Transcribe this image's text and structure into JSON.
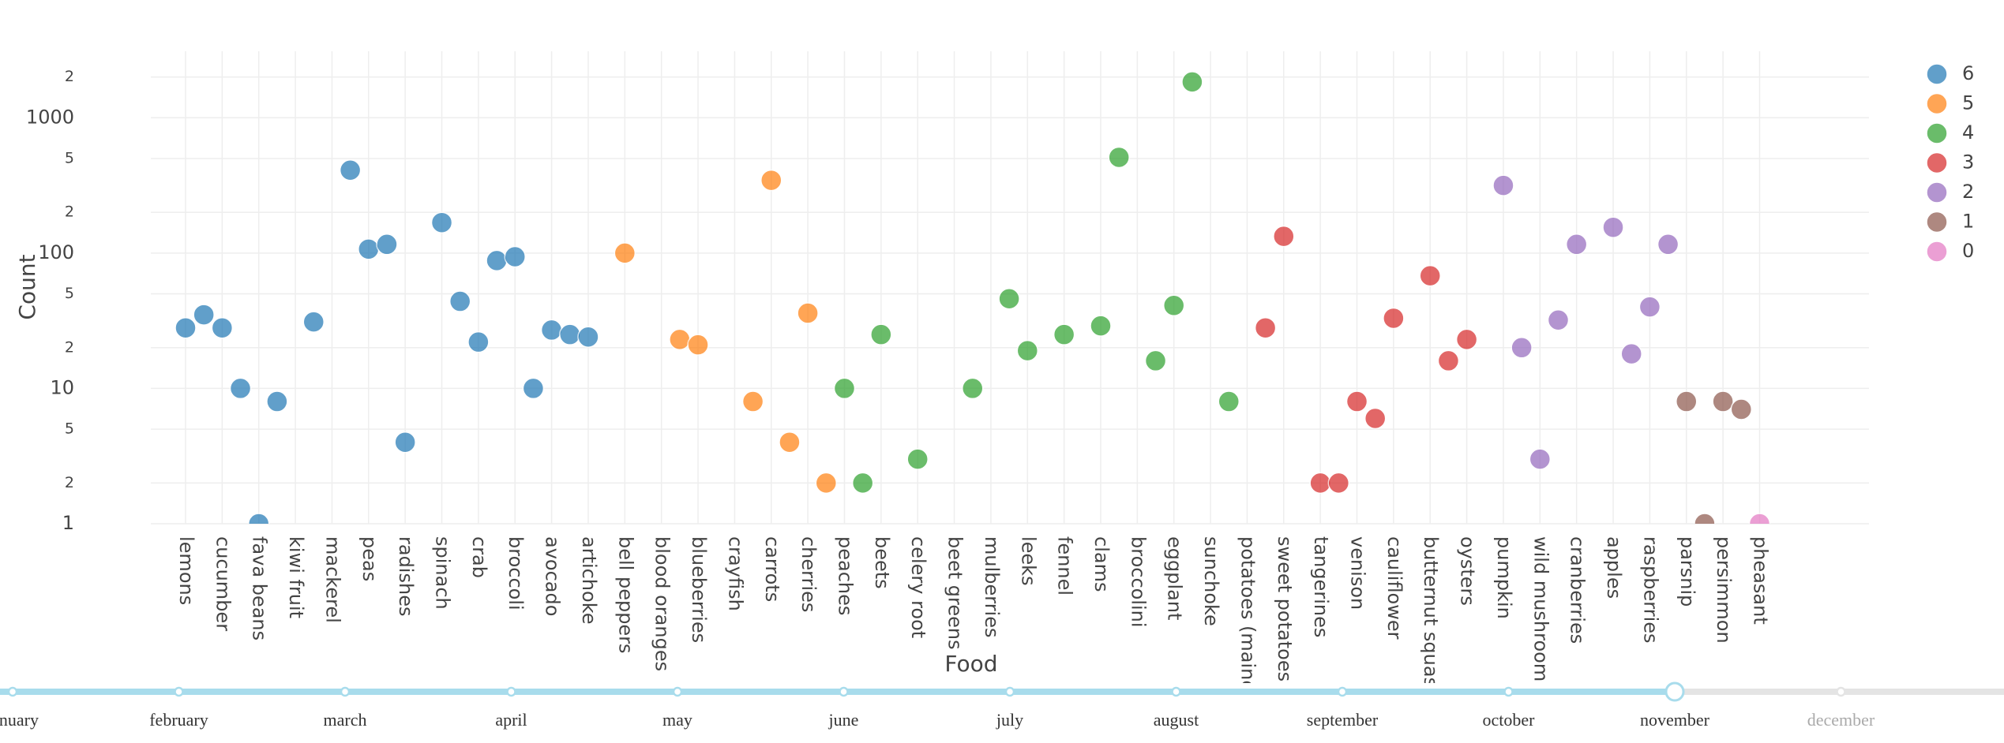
{
  "chart_data": {
    "type": "scatter",
    "x_label": "Food",
    "y_label": "Count",
    "log_y": true,
    "grid": true,
    "ylim": [
      1,
      3100
    ],
    "yticks": [
      1,
      2,
      5,
      10,
      {
        "value": 20,
        "label": "2"
      },
      {
        "value": 50,
        "label": "5"
      },
      100,
      {
        "value": 200,
        "label": "2"
      },
      {
        "value": 500,
        "label": "5"
      },
      1000,
      {
        "value": 2000,
        "label": "2"
      }
    ],
    "categories": [
      "lemons",
      null,
      "cucumber",
      null,
      "fava beans",
      null,
      "kiwi fruit",
      null,
      "mackerel",
      null,
      "peas",
      null,
      "radishes",
      null,
      "spinach",
      null,
      "crab",
      null,
      "broccoli",
      null,
      "avocado",
      null,
      "artichoke",
      null,
      "bell peppers",
      null,
      "blood oranges",
      null,
      "blueberries",
      null,
      "crayfish",
      null,
      "carrots",
      null,
      "cherries",
      null,
      "peaches",
      null,
      "beets",
      null,
      "celery root",
      null,
      "beet greens",
      null,
      "mulberries",
      null,
      "leeks",
      null,
      "fennel",
      null,
      "clams",
      null,
      "broccolini",
      null,
      "eggplant",
      null,
      "sunchoke",
      null,
      "potatoes (mainc",
      null,
      "sweet potatoes",
      null,
      "tangerines",
      null,
      "venison",
      null,
      "cauliflower",
      null,
      "butternut squas",
      null,
      "oysters",
      null,
      "pumpkin",
      null,
      "wild mushroom",
      null,
      "cranberries",
      null,
      "apples",
      null,
      "raspberries",
      null,
      "parsnip",
      null,
      "persimmon",
      null,
      "pheasant"
    ],
    "series": [
      {
        "name": "6",
        "color": "#1f77b4",
        "values": [
          28,
          35,
          28,
          10,
          1,
          8,
          null,
          31,
          null,
          410,
          107,
          116,
          4,
          null,
          168,
          44,
          22,
          88,
          94,
          10,
          27,
          25,
          24,
          null,
          null,
          null,
          null,
          null,
          null,
          null,
          null,
          null,
          null,
          null,
          null,
          null,
          null,
          null,
          null,
          null,
          null,
          null,
          null,
          null,
          null,
          null,
          null,
          null,
          null,
          null,
          null,
          null,
          null,
          null,
          null,
          null,
          null,
          null,
          null,
          null,
          null,
          null,
          null,
          null,
          null,
          null,
          null,
          null,
          null,
          null,
          null,
          null,
          null,
          null,
          null,
          null,
          null,
          null,
          null,
          null,
          null,
          null,
          null,
          null,
          null,
          null,
          null
        ]
      },
      {
        "name": "5",
        "color": "#ff7f0e",
        "values": [
          null,
          null,
          null,
          null,
          null,
          null,
          null,
          null,
          null,
          null,
          null,
          null,
          null,
          null,
          null,
          null,
          null,
          null,
          null,
          null,
          null,
          null,
          null,
          null,
          100,
          null,
          null,
          23,
          21,
          null,
          null,
          8,
          345,
          4,
          36,
          2,
          null,
          null,
          null,
          null,
          null,
          null,
          null,
          null,
          null,
          null,
          null,
          null,
          null,
          null,
          null,
          null,
          null,
          null,
          null,
          null,
          null,
          null,
          null,
          null,
          null,
          null,
          null,
          null,
          null,
          null,
          null,
          null,
          null,
          null,
          null,
          null,
          null,
          null,
          null,
          null,
          null,
          null,
          null,
          null,
          null,
          null,
          null,
          null,
          null,
          null,
          null
        ]
      },
      {
        "name": "4",
        "color": "#2ca02c",
        "values": [
          null,
          null,
          null,
          null,
          null,
          null,
          null,
          null,
          null,
          null,
          null,
          null,
          null,
          null,
          null,
          null,
          null,
          null,
          null,
          null,
          null,
          null,
          null,
          null,
          null,
          null,
          null,
          null,
          null,
          null,
          null,
          null,
          null,
          null,
          null,
          null,
          10,
          2,
          25,
          null,
          3,
          null,
          null,
          10,
          null,
          46,
          19,
          null,
          25,
          null,
          29,
          510,
          null,
          16,
          41,
          1840,
          null,
          8,
          null,
          null,
          null,
          null,
          null,
          null,
          null,
          null,
          null,
          null,
          null,
          null,
          null,
          null,
          null,
          null,
          null,
          null,
          null,
          null,
          null,
          null,
          null,
          null,
          null,
          null,
          null,
          null,
          null
        ]
      },
      {
        "name": "3",
        "color": "#d62728",
        "values": [
          null,
          null,
          null,
          null,
          null,
          null,
          null,
          null,
          null,
          null,
          null,
          null,
          null,
          null,
          null,
          null,
          null,
          null,
          null,
          null,
          null,
          null,
          null,
          null,
          null,
          null,
          null,
          null,
          null,
          null,
          null,
          null,
          null,
          null,
          null,
          null,
          null,
          null,
          null,
          null,
          null,
          null,
          null,
          null,
          null,
          null,
          null,
          null,
          null,
          null,
          null,
          null,
          null,
          null,
          null,
          null,
          null,
          null,
          null,
          28,
          133,
          null,
          2,
          2,
          8,
          6,
          33,
          null,
          68,
          16,
          23,
          null,
          null,
          null,
          null,
          null,
          null,
          null,
          null,
          null,
          null,
          null,
          null,
          null,
          null,
          null,
          null
        ]
      },
      {
        "name": "2",
        "color": "#9467bd",
        "values": [
          null,
          null,
          null,
          null,
          null,
          null,
          null,
          null,
          null,
          null,
          null,
          null,
          null,
          null,
          null,
          null,
          null,
          null,
          null,
          null,
          null,
          null,
          null,
          null,
          null,
          null,
          null,
          null,
          null,
          null,
          null,
          null,
          null,
          null,
          null,
          null,
          null,
          null,
          null,
          null,
          null,
          null,
          null,
          null,
          null,
          null,
          null,
          null,
          null,
          null,
          null,
          null,
          null,
          null,
          null,
          null,
          null,
          null,
          null,
          null,
          null,
          null,
          null,
          null,
          null,
          null,
          null,
          null,
          null,
          null,
          null,
          null,
          316,
          20,
          3,
          32,
          116,
          null,
          155,
          18,
          40,
          116,
          null,
          null,
          null,
          null,
          null
        ]
      },
      {
        "name": "1",
        "color": "#8c564b",
        "values": [
          null,
          null,
          null,
          null,
          null,
          null,
          null,
          null,
          null,
          null,
          null,
          null,
          null,
          null,
          null,
          null,
          null,
          null,
          null,
          null,
          null,
          null,
          null,
          null,
          null,
          null,
          null,
          null,
          null,
          null,
          null,
          null,
          null,
          null,
          null,
          null,
          null,
          null,
          null,
          null,
          null,
          null,
          null,
          null,
          null,
          null,
          null,
          null,
          null,
          null,
          null,
          null,
          null,
          null,
          null,
          null,
          null,
          null,
          null,
          null,
          null,
          null,
          null,
          null,
          null,
          null,
          null,
          null,
          null,
          null,
          null,
          null,
          null,
          null,
          null,
          null,
          null,
          null,
          null,
          null,
          null,
          null,
          8,
          1,
          8,
          7,
          null
        ]
      },
      {
        "name": "0",
        "color": "#e377c2",
        "values": [
          null,
          null,
          null,
          null,
          null,
          null,
          null,
          null,
          null,
          null,
          null,
          null,
          null,
          null,
          null,
          null,
          null,
          null,
          null,
          null,
          null,
          null,
          null,
          null,
          null,
          null,
          null,
          null,
          null,
          null,
          null,
          null,
          null,
          null,
          null,
          null,
          null,
          null,
          null,
          null,
          null,
          null,
          null,
          null,
          null,
          null,
          null,
          null,
          null,
          null,
          null,
          null,
          null,
          null,
          null,
          null,
          null,
          null,
          null,
          null,
          null,
          null,
          null,
          null,
          null,
          null,
          null,
          null,
          null,
          null,
          null,
          null,
          null,
          null,
          null,
          null,
          null,
          null,
          null,
          null,
          null,
          null,
          null,
          null,
          null,
          null,
          1
        ]
      }
    ]
  },
  "slider": {
    "steps": [
      "january",
      "february",
      "march",
      "april",
      "may",
      "june",
      "july",
      "august",
      "september",
      "october",
      "november",
      "december"
    ],
    "active": 10
  }
}
